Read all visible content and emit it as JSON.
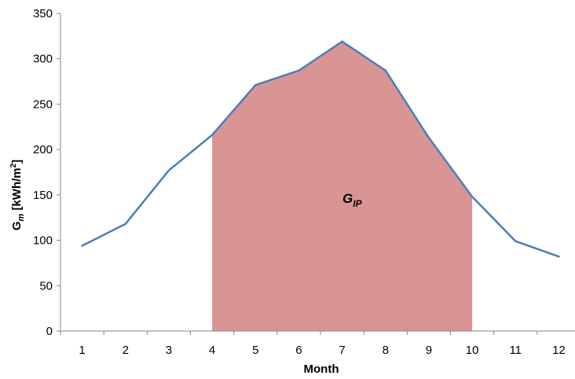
{
  "chart_data": {
    "type": "line",
    "title": "",
    "xlabel": "Month",
    "ylabel": {
      "symbol": "G",
      "subscript": "m",
      "unit_open": " [kWh/m",
      "unit_sup": "2",
      "unit_close": "]"
    },
    "x": [
      1,
      2,
      3,
      4,
      5,
      6,
      7,
      8,
      9,
      10,
      11,
      12
    ],
    "x_tick_labels": [
      "1",
      "2",
      "3",
      "4",
      "5",
      "6",
      "7",
      "8",
      "9",
      "10",
      "11",
      "12"
    ],
    "ylim": [
      0,
      350
    ],
    "y_ticks": [
      0,
      50,
      100,
      150,
      200,
      250,
      300,
      350
    ],
    "y_tick_labels": [
      "0",
      "50",
      "100",
      "150",
      "200",
      "250",
      "300",
      "350"
    ],
    "series": [
      {
        "values": [
          94,
          118,
          177,
          216,
          271,
          287,
          319,
          287,
          213,
          148,
          99,
          82
        ]
      }
    ],
    "shaded_region": {
      "x_start": 4,
      "x_end": 10,
      "label": {
        "symbol": "G",
        "subscript": "IP"
      }
    },
    "grid": false,
    "legend": "none",
    "colors": {
      "line": "#4a7ebb",
      "fill": "#d99594",
      "axis": "#868686"
    }
  }
}
